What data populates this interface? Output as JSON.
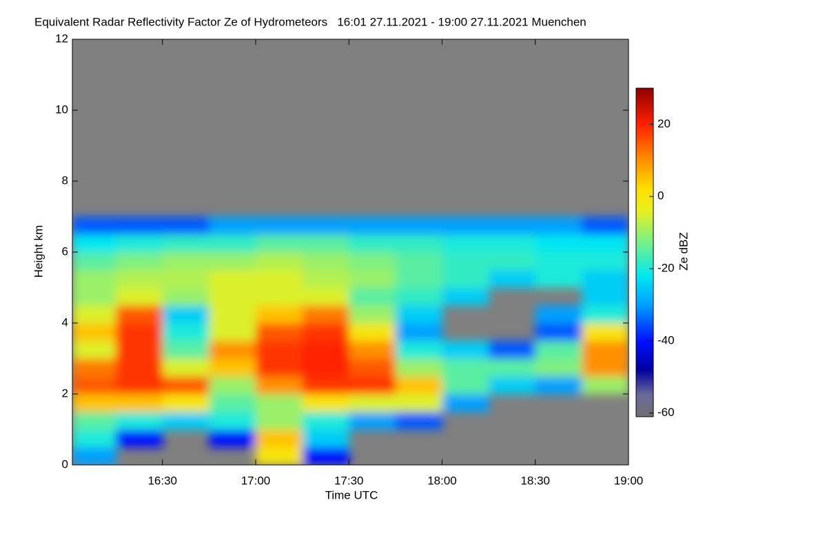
{
  "chart_data": {
    "type": "heatmap",
    "title": "Equivalent Radar Reflectivity Factor Ze of Hydrometeors   16:01 27.11.2021 - 19:00 27.11.2021 Muenchen",
    "xlabel": "Time UTC",
    "ylabel": "Height km",
    "colorbar_label": "Ze dBZ",
    "xlim": [
      961,
      1140
    ],
    "xticks": [
      {
        "value": 990,
        "label": "16:30"
      },
      {
        "value": 1020,
        "label": "17:00"
      },
      {
        "value": 1050,
        "label": "17:30"
      },
      {
        "value": 1080,
        "label": "18:00"
      },
      {
        "value": 1110,
        "label": "18:30"
      },
      {
        "value": 1140,
        "label": "19:00"
      }
    ],
    "ylim": [
      0,
      12
    ],
    "yticks": [
      0,
      2,
      4,
      6,
      8,
      10,
      12
    ],
    "clim": [
      -61,
      30
    ],
    "cticks": [
      20,
      0,
      -20,
      -40,
      -60
    ],
    "background": "#808080",
    "colorscale": [
      {
        "value": -61,
        "color": "#707070"
      },
      {
        "value": -55,
        "color": "#6a6a9a"
      },
      {
        "value": -48,
        "color": "#0000a0"
      },
      {
        "value": -40,
        "color": "#0010ff"
      },
      {
        "value": -30,
        "color": "#00a0ff"
      },
      {
        "value": -22,
        "color": "#00e8f0"
      },
      {
        "value": -12,
        "color": "#80f080"
      },
      {
        "value": -4,
        "color": "#e8f020"
      },
      {
        "value": 2,
        "color": "#ffe000"
      },
      {
        "value": 10,
        "color": "#ff9000"
      },
      {
        "value": 20,
        "color": "#ff2000"
      },
      {
        "value": 30,
        "color": "#900000"
      }
    ],
    "x_bins": [
      961,
      975,
      990,
      1005,
      1020,
      1035,
      1050,
      1065,
      1080,
      1095,
      1110,
      1125,
      1140
    ],
    "y_bins": [
      0,
      0.5,
      1,
      1.5,
      2,
      2.5,
      3,
      3.5,
      4,
      4.5,
      5,
      5.5,
      6,
      6.5,
      7
    ],
    "values": [
      [
        -30,
        -20,
        -15,
        5,
        15,
        12,
        -5,
        5,
        -5,
        -10,
        -10,
        -15,
        -22,
        -35
      ],
      [
        null,
        -40,
        -20,
        5,
        18,
        18,
        18,
        18,
        15,
        -5,
        -8,
        -12,
        -20,
        -35
      ],
      [
        null,
        null,
        -25,
        0,
        15,
        -5,
        -15,
        -20,
        -25,
        -10,
        -8,
        -10,
        -18,
        -35
      ],
      [
        null,
        -40,
        -20,
        -15,
        -10,
        5,
        10,
        -5,
        -5,
        -5,
        -5,
        -10,
        -18,
        -30
      ],
      [
        0,
        5,
        -10,
        -10,
        10,
        18,
        18,
        15,
        5,
        -5,
        -5,
        -8,
        -15,
        -30
      ],
      [
        -40,
        -25,
        -20,
        0,
        18,
        20,
        20,
        18,
        12,
        -5,
        -8,
        -10,
        -15,
        -30
      ],
      [
        null,
        null,
        -30,
        -5,
        18,
        15,
        10,
        0,
        -10,
        -15,
        -10,
        -12,
        -18,
        -30
      ],
      [
        null,
        null,
        -35,
        -5,
        5,
        -10,
        -20,
        -30,
        -25,
        -18,
        -15,
        -15,
        -18,
        -30
      ],
      [
        null,
        null,
        null,
        -30,
        -15,
        -15,
        -25,
        null,
        null,
        -25,
        -18,
        -18,
        -20,
        -30
      ],
      [
        null,
        null,
        null,
        null,
        -25,
        -15,
        -35,
        null,
        null,
        null,
        -25,
        -18,
        -20,
        -30
      ],
      [
        null,
        null,
        null,
        null,
        -30,
        -12,
        -15,
        -35,
        -30,
        null,
        -20,
        -20,
        -22,
        -30
      ],
      [
        null,
        null,
        null,
        null,
        -10,
        10,
        10,
        0,
        -20,
        -25,
        -25,
        -20,
        -22,
        -35
      ]
    ]
  }
}
